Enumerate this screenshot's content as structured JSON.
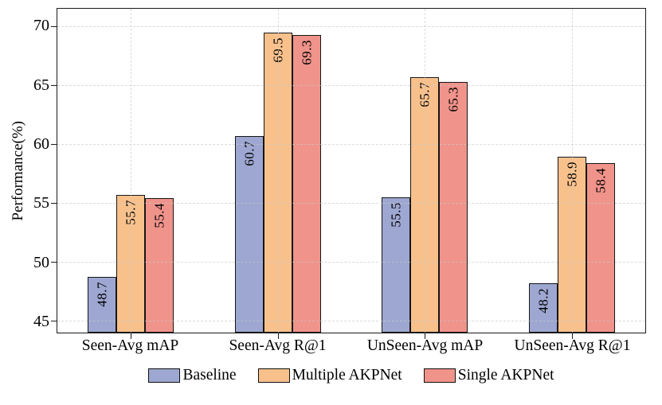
{
  "chart_data": {
    "type": "bar",
    "title": "",
    "xlabel": "",
    "ylabel": "Performance(%)",
    "categories": [
      "Seen-Avg mAP",
      "Seen-Avg R@1",
      "UnSeen-Avg mAP",
      "UnSeen-Avg R@1"
    ],
    "series": [
      {
        "name": "Baseline",
        "color": "#9da7d1",
        "values": [
          48.7,
          60.7,
          55.5,
          48.2
        ]
      },
      {
        "name": "Multiple AKPNet",
        "color": "#f8c18c",
        "values": [
          55.7,
          69.5,
          65.7,
          58.9
        ]
      },
      {
        "name": "Single AKPNet",
        "color": "#f0938a",
        "values": [
          55.4,
          69.3,
          65.3,
          58.4
        ]
      }
    ],
    "yticks": [
      45,
      50,
      55,
      60,
      65,
      70
    ],
    "ylim": [
      44,
      71.5
    ],
    "grid": "both-dashed",
    "grid_color": "#cdcdcd",
    "bar_edge_color": "#161616",
    "value_labels_rotated": true,
    "legend_position": "bottom"
  }
}
